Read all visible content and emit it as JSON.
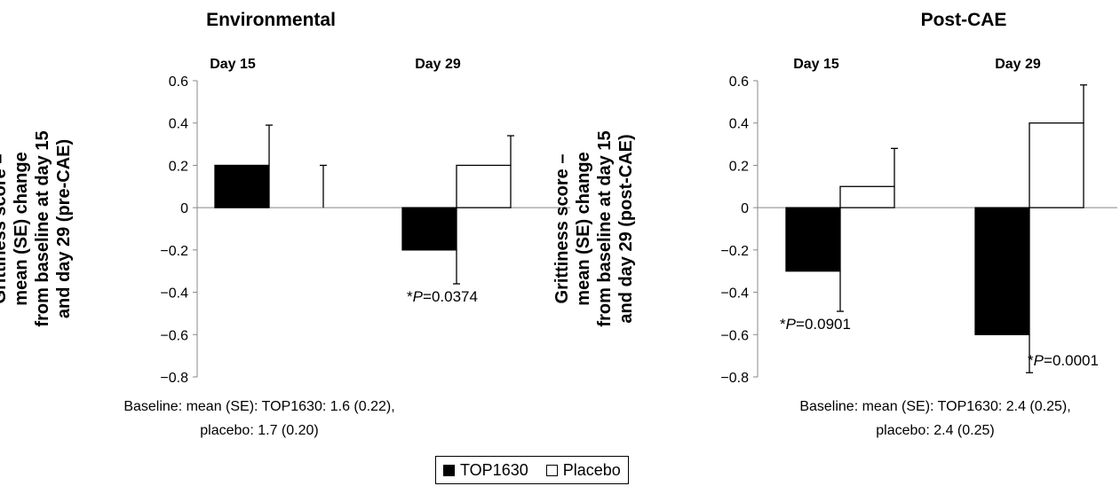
{
  "chart_data": [
    {
      "type": "bar",
      "title": "Environmental",
      "ylabel": [
        "Grittiness score –",
        "mean (SE) change",
        "from baseline at day 15",
        "and day 29 (pre-CAE)"
      ],
      "categories": [
        "Day 15",
        "Day 29"
      ],
      "ylim": [
        -0.8,
        0.6
      ],
      "yticks": [
        "0.6",
        "0.4",
        "0.2",
        "0",
        "−0.2",
        "−0.4",
        "−0.6",
        "−0.8"
      ],
      "series": [
        {
          "name": "TOP1630",
          "values": [
            0.2,
            -0.2
          ],
          "se": [
            0.19,
            0.16
          ]
        },
        {
          "name": "Placebo",
          "values": [
            0.0,
            0.2
          ],
          "se": [
            0.2,
            0.14
          ]
        }
      ],
      "annotations": [
        {
          "category": "Day 29",
          "prefix": "*",
          "italic": "P",
          "text": "=0.0374"
        }
      ],
      "baseline_note": [
        "Baseline: mean (SE): TOP1630: 1.6 (0.22),",
        "placebo: 1.7 (0.20)"
      ]
    },
    {
      "type": "bar",
      "title": "Post-CAE",
      "ylabel": [
        "Grittiness score –",
        "mean (SE) change",
        "from baseline at day 15",
        "and day 29 (post-CAE)"
      ],
      "categories": [
        "Day 15",
        "Day 29"
      ],
      "ylim": [
        -0.8,
        0.6
      ],
      "yticks": [
        "0.6",
        "0.4",
        "0.2",
        "0",
        "−0.2",
        "−0.4",
        "−0.6",
        "−0.8"
      ],
      "series": [
        {
          "name": "TOP1630",
          "values": [
            -0.3,
            -0.6
          ],
          "se": [
            0.19,
            0.18
          ]
        },
        {
          "name": "Placebo",
          "values": [
            0.1,
            0.4
          ],
          "se": [
            0.18,
            0.18
          ]
        }
      ],
      "annotations": [
        {
          "category": "Day 15",
          "prefix": "*",
          "italic": "P",
          "text": "=0.0901"
        },
        {
          "category": "Day 29",
          "prefix": "*",
          "italic": "P",
          "text": "=0.0001"
        }
      ],
      "baseline_note": [
        "Baseline: mean (SE): TOP1630: 2.4 (0.25),",
        "placebo: 2.4 (0.25)"
      ]
    }
  ],
  "legend": {
    "items": [
      {
        "label": "TOP1630",
        "color": "#000000"
      },
      {
        "label": "Placebo",
        "color": "#ffffff"
      }
    ]
  }
}
